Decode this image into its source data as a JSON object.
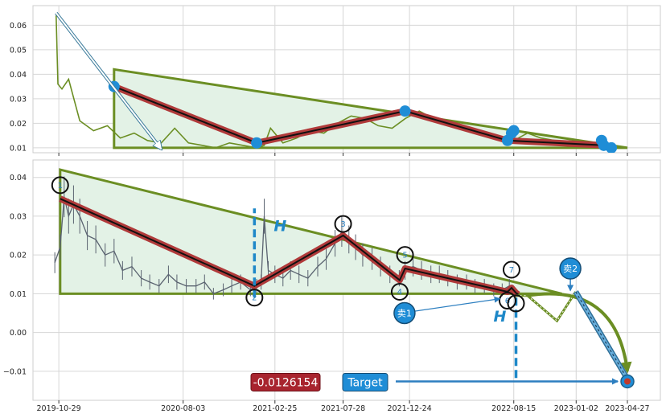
{
  "chart_data": [
    {
      "type": "line",
      "panel": "top",
      "title": "",
      "xlabel": "",
      "ylabel": "",
      "ylim": [
        0.008,
        0.068
      ],
      "yticks": [
        0.01,
        0.02,
        0.03,
        0.04,
        0.05,
        0.06
      ],
      "ytick_labels": [
        "0.01",
        "0.02",
        "0.03",
        "0.04",
        "0.05",
        "0.06"
      ],
      "grid": true,
      "colors": {
        "price": "#6b8e23",
        "zigzag_outer": "#b03a3a",
        "zigzag_inner": "#111111",
        "triangle": "#6b8e23",
        "triangle_fill": "#e3f2e6",
        "pivot": "#1f8dd6"
      },
      "price_series": {
        "name": "",
        "x": [
          "2019-10-23",
          "2019-10-27",
          "2019-11-05",
          "2019-11-20",
          "2019-12-15",
          "2020-01-15",
          "2020-02-15",
          "2020-03-15",
          "2020-04-15",
          "2020-05-15",
          "2020-06-15",
          "2020-07-15",
          "2020-08-15",
          "2020-09-15",
          "2020-10-15",
          "2020-11-15",
          "2020-12-15",
          "2021-01-15",
          "2021-02-01",
          "2021-02-15",
          "2021-03-15",
          "2021-04-15",
          "2021-05-15",
          "2021-06-15",
          "2021-07-15",
          "2021-08-15",
          "2021-09-15",
          "2021-10-15",
          "2021-11-15",
          "2021-12-15",
          "2022-01-15",
          "2022-02-15",
          "2022-03-15",
          "2022-04-15",
          "2022-05-15",
          "2022-06-15",
          "2022-07-15",
          "2022-08-15",
          "2022-09-15",
          "2022-10-15",
          "2022-11-15",
          "2022-12-15",
          "2023-01-15",
          "2023-02-15",
          "2023-03-15",
          "2023-04-01"
        ],
        "y": [
          0.064,
          0.036,
          0.034,
          0.038,
          0.021,
          0.017,
          0.019,
          0.014,
          0.016,
          0.013,
          0.012,
          0.018,
          0.012,
          0.011,
          0.01,
          0.012,
          0.011,
          0.01,
          0.011,
          0.018,
          0.012,
          0.014,
          0.017,
          0.016,
          0.02,
          0.023,
          0.022,
          0.019,
          0.018,
          0.022,
          0.025,
          0.022,
          0.02,
          0.018,
          0.016,
          0.015,
          0.014,
          0.013,
          0.016,
          0.014,
          0.013,
          0.012,
          0.011,
          0.012,
          0.011,
          0.01
        ]
      },
      "zigzag": {
        "x": [
          "2020-03-01",
          "2021-01-15",
          "2021-12-14",
          "2022-08-01",
          "2023-03-05",
          "2023-03-22"
        ],
        "y": [
          0.035,
          0.012,
          0.025,
          0.013,
          0.011,
          0.0105
        ]
      },
      "pivots": {
        "x": [
          "2020-03-01",
          "2021-01-15",
          "2021-12-14",
          "2022-08-01",
          "2022-08-10",
          "2022-08-15",
          "2023-02-28",
          "2023-03-05",
          "2023-03-22"
        ],
        "y": [
          0.035,
          0.012,
          0.025,
          0.013,
          0.016,
          0.017,
          0.013,
          0.011,
          0.01
        ]
      },
      "triangle": {
        "x": [
          "2020-03-01",
          "2023-04-27",
          "2020-03-01"
        ],
        "y": [
          0.042,
          0.01,
          0.01
        ]
      },
      "arrow": {
        "from": [
          "2019-10-23",
          0.065
        ],
        "to": [
          "2020-06-15",
          0.0095
        ]
      }
    },
    {
      "type": "line",
      "panel": "bottom",
      "title": "",
      "xlabel": "",
      "ylabel": "",
      "ylim": [
        -0.0175,
        0.0445
      ],
      "yticks": [
        -0.01,
        0.0,
        0.01,
        0.02,
        0.03,
        0.04
      ],
      "ytick_labels": [
        "−0.01",
        "0.00",
        "0.01",
        "0.02",
        "0.03",
        "0.04"
      ],
      "xticks": [
        "2019-10-29",
        "2020-08-03",
        "2021-02-25",
        "2021-07-28",
        "2021-12-24",
        "2022-08-15",
        "2023-01-02",
        "2023-04-27"
      ],
      "xlim": [
        "2019-09-01",
        "2023-07-10"
      ],
      "grid": true,
      "colors": {
        "price": "#5a6370",
        "zigzag_outer": "#b03a3a",
        "zigzag_inner": "#111111",
        "triangle": "#6b8e23",
        "triangle_fill": "#e3f2e6",
        "h_line": "#1e88c8",
        "target_box": "#1f8dd6",
        "value_box": "#a8242e",
        "sell_circle": "#1f8dd6",
        "projection": "#6b8e23",
        "sell_path": "#6ab0dd"
      },
      "price_series": {
        "name": "",
        "x": [
          "2019-10-20",
          "2019-11-01",
          "2019-11-10",
          "2019-11-20",
          "2019-12-01",
          "2019-12-15",
          "2020-01-01",
          "2020-01-20",
          "2020-02-10",
          "2020-03-01",
          "2020-03-20",
          "2020-04-10",
          "2020-05-01",
          "2020-05-20",
          "2020-06-10",
          "2020-07-01",
          "2020-07-20",
          "2020-08-10",
          "2020-09-01",
          "2020-09-20",
          "2020-10-10",
          "2020-11-01",
          "2020-11-20",
          "2020-12-10",
          "2021-01-01",
          "2021-01-15",
          "2021-01-25",
          "2021-02-01",
          "2021-02-10",
          "2021-02-25",
          "2021-03-15",
          "2021-04-01",
          "2021-04-20",
          "2021-05-10",
          "2021-06-01",
          "2021-06-20",
          "2021-07-10",
          "2021-07-25",
          "2021-08-10",
          "2021-08-25",
          "2021-09-10",
          "2021-10-01",
          "2021-10-20",
          "2021-11-10",
          "2021-12-01",
          "2021-12-14",
          "2022-01-01",
          "2022-01-20",
          "2022-02-10",
          "2022-03-01",
          "2022-03-20",
          "2022-04-10",
          "2022-05-01",
          "2022-05-20",
          "2022-06-10",
          "2022-07-01",
          "2022-07-20",
          "2022-08-05"
        ],
        "y": [
          0.018,
          0.022,
          0.035,
          0.03,
          0.033,
          0.03,
          0.025,
          0.024,
          0.02,
          0.021,
          0.016,
          0.017,
          0.014,
          0.013,
          0.012,
          0.015,
          0.013,
          0.012,
          0.012,
          0.013,
          0.01,
          0.011,
          0.012,
          0.013,
          0.011,
          0.012,
          0.013,
          0.03,
          0.016,
          0.015,
          0.014,
          0.016,
          0.015,
          0.014,
          0.017,
          0.019,
          0.023,
          0.026,
          0.024,
          0.022,
          0.02,
          0.019,
          0.017,
          0.015,
          0.014,
          0.016,
          0.017,
          0.016,
          0.015,
          0.015,
          0.014,
          0.013,
          0.013,
          0.012,
          0.012,
          0.011,
          0.011,
          0.012
        ]
      },
      "zigzag": {
        "x": [
          "2019-11-01",
          "2021-01-10",
          "2021-07-28",
          "2021-12-02",
          "2021-12-14",
          "2022-08-01",
          "2022-08-10",
          "2022-08-20",
          "2022-08-25"
        ],
        "y": [
          0.0345,
          0.012,
          0.025,
          0.0135,
          0.0165,
          0.0105,
          0.0115,
          0.0102,
          0.0098
        ]
      },
      "pivots": [
        {
          "label": "1",
          "x": "2019-11-01",
          "y": 0.038
        },
        {
          "label": "2",
          "x": "2021-01-10",
          "y": 0.009
        },
        {
          "label": "3",
          "x": "2021-07-28",
          "y": 0.028
        },
        {
          "label": "4",
          "x": "2021-12-02",
          "y": 0.0105
        },
        {
          "label": "5",
          "x": "2021-12-14",
          "y": 0.02
        },
        {
          "label": "6",
          "x": "2022-08-01",
          "y": 0.0082
        },
        {
          "label": "7",
          "x": "2022-08-10",
          "y": 0.0162
        },
        {
          "label": "",
          "x": "2022-08-20",
          "y": 0.0075
        }
      ],
      "triangle": {
        "x": [
          "2019-11-01",
          "2022-12-01",
          "2019-11-01"
        ],
        "y": [
          0.042,
          0.01,
          0.01
        ]
      },
      "h_lines": [
        {
          "label": "H",
          "x": "2021-01-10",
          "y_from": 0.009,
          "y_to": 0.032
        },
        {
          "label": "H",
          "x": "2022-08-20",
          "y_from": 0.009,
          "y_to": -0.012
        }
      ],
      "projection": {
        "x": [
          "2022-08-20",
          "2022-09-15",
          "2022-11-20",
          "2023-01-01",
          "2023-04-27"
        ],
        "y": [
          0.0095,
          0.0095,
          0.003,
          0.0105,
          -0.012
        ]
      },
      "sell_points": [
        {
          "label": "卖1",
          "x": "2021-12-02",
          "y": 0.005
        },
        {
          "label": "卖2",
          "x": "2022-12-20",
          "y": 0.0165
        }
      ],
      "sell_path": {
        "x": [
          "2023-01-01",
          "2023-04-27"
        ],
        "y": [
          0.0105,
          -0.012
        ]
      },
      "target": {
        "label": "Target",
        "x": "2023-04-27",
        "y": -0.0126154
      },
      "value_label": "-0.0126154"
    }
  ]
}
